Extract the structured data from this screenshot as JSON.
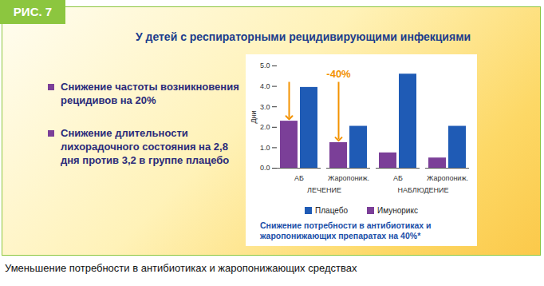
{
  "figure_label": "РИС. 7",
  "bullets": [
    "Снижение частоты возникновения рецидивов на 20%",
    "Снижение длительности лихорадочного состояния на 2,8 дня против 3,2 в группе плацебо"
  ],
  "caption": "Уменьшение потребности в антибиотиках и жаропонижающих средствах",
  "chart_data": {
    "type": "bar",
    "title": "У детей с респираторными рецидивирующими инфекциями",
    "categories": [
      "АБ",
      "Жаропониж.",
      "АБ",
      "Жаропониж."
    ],
    "category_groups": [
      "ЛЕЧЕНИЕ",
      "ЛЕЧЕНИЕ",
      "НАБЛЮДЕНИЕ",
      "НАБЛЮДЕНИЕ"
    ],
    "series": [
      {
        "name": "Имунорикс",
        "color": "#7b3f98",
        "values": [
          2.3,
          1.25,
          0.75,
          0.5
        ]
      },
      {
        "name": "Плацебо",
        "color": "#1f5bb5",
        "values": [
          3.95,
          2.05,
          4.6,
          2.05
        ]
      }
    ],
    "y_label": "Дни",
    "ylim": [
      0,
      5
    ],
    "yticks": [
      0,
      1,
      2,
      3,
      4,
      5
    ],
    "grid": false,
    "legend": "bottom",
    "annotation": {
      "text": "-40%",
      "series": "Имунорикс",
      "categories": [
        0,
        1
      ],
      "color": "#f39200"
    },
    "note": "Снижение потребности в антибиотиках и жаропонижающих препаратах на 40%*"
  }
}
